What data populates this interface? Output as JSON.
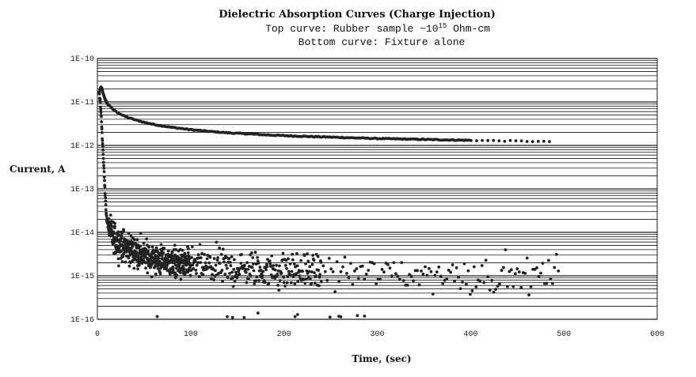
{
  "chart_data": {
    "type": "scatter",
    "title": "Dielectric Absorption Curves (Charge Injection)",
    "subtitle_top": {
      "prefix": "Top curve:  Rubber sample ~10",
      "superscript": "15",
      "suffix": " Ohm-cm"
    },
    "subtitle_bottom": "Bottom curve:  Fixture alone",
    "xlabel": "Time, (sec)",
    "ylabel": "Current, A",
    "x_scale": "linear",
    "y_scale": "log",
    "xlim": [
      0,
      600
    ],
    "ylim": [
      1e-16,
      1e-10
    ],
    "x_ticks": [
      0,
      100,
      200,
      300,
      400,
      500,
      600
    ],
    "y_ticks": [
      {
        "value": 1e-10,
        "label": "1E-10"
      },
      {
        "value": 1e-11,
        "label": "1E-11"
      },
      {
        "value": 1e-12,
        "label": "1E-12"
      },
      {
        "value": 1e-13,
        "label": "1E-13"
      },
      {
        "value": 1e-14,
        "label": "1E-14"
      },
      {
        "value": 1e-15,
        "label": "1E-15"
      },
      {
        "value": 1e-16,
        "label": "1E-16"
      }
    ],
    "grid": "horizontal log minor gridlines",
    "marker_color": "#222222",
    "series": [
      {
        "name": "Rubber sample (top curve)",
        "points": [
          [
            2,
            1.6e-11
          ],
          [
            3,
            2e-11
          ],
          [
            4,
            2.2e-11
          ],
          [
            5,
            2e-11
          ],
          [
            6,
            1.6e-11
          ],
          [
            8,
            1.2e-11
          ],
          [
            10,
            9.5e-12
          ],
          [
            13,
            8e-12
          ],
          [
            16,
            7e-12
          ],
          [
            20,
            6e-12
          ],
          [
            25,
            5.2e-12
          ],
          [
            30,
            4.6e-12
          ],
          [
            40,
            3.9e-12
          ],
          [
            50,
            3.4e-12
          ],
          [
            60,
            3.05e-12
          ],
          [
            70,
            2.8e-12
          ],
          [
            80,
            2.6e-12
          ],
          [
            90,
            2.45e-12
          ],
          [
            100,
            2.3e-12
          ],
          [
            120,
            2.1e-12
          ],
          [
            140,
            1.95e-12
          ],
          [
            160,
            1.85e-12
          ],
          [
            180,
            1.75e-12
          ],
          [
            200,
            1.68e-12
          ],
          [
            220,
            1.62e-12
          ],
          [
            250,
            1.55e-12
          ],
          [
            280,
            1.48e-12
          ],
          [
            300,
            1.44e-12
          ],
          [
            330,
            1.4e-12
          ],
          [
            360,
            1.36e-12
          ],
          [
            400,
            1.31e-12
          ],
          [
            430,
            1.28e-12
          ],
          [
            460,
            1.25e-12
          ],
          [
            480,
            1.22e-12
          ],
          [
            490,
            1.25e-12
          ]
        ],
        "step_sec": 1.5
      },
      {
        "name": "Fixture alone (bottom curve)",
        "decay_points": [
          [
            2,
            1.6e-11
          ],
          [
            3,
            1e-11
          ],
          [
            4,
            5e-12
          ],
          [
            5,
            2e-12
          ],
          [
            6,
            8e-13
          ],
          [
            7,
            3e-13
          ],
          [
            8,
            1e-13
          ],
          [
            9,
            4e-14
          ],
          [
            10,
            2e-14
          ],
          [
            12,
            1.3e-14
          ],
          [
            15,
            9e-15
          ],
          [
            20,
            6.5e-15
          ],
          [
            30,
            4.5e-15
          ],
          [
            50,
            2.8e-15
          ],
          [
            80,
            2e-15
          ],
          [
            120,
            1.6e-15
          ],
          [
            200,
            1.3e-15
          ],
          [
            300,
            1.15e-15
          ],
          [
            400,
            1.05e-15
          ],
          [
            500,
            1e-15
          ]
        ],
        "noise_dense_until_sec": 100,
        "noise_sparse_until_sec": 495,
        "noise_lower_bound": 1e-16
      }
    ]
  }
}
